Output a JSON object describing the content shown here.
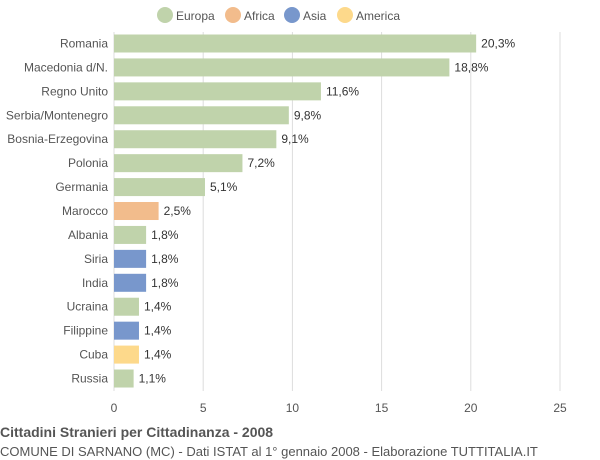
{
  "chart_data": {
    "type": "bar",
    "orientation": "horizontal",
    "title": "Cittadini Stranieri per Cittadinanza - 2008",
    "subtitle": "COMUNE DI SARNANO (MC) - Dati ISTAT al 1° gennaio 2008 - Elaborazione TUTTITALIA.IT",
    "legend_position": "top",
    "legend": [
      {
        "name": "Europa",
        "color": "#c0d3ab"
      },
      {
        "name": "Africa",
        "color": "#f2bc8c"
      },
      {
        "name": "Asia",
        "color": "#7897cc"
      },
      {
        "name": "America",
        "color": "#fdd98b"
      }
    ],
    "categories": [
      "Romania",
      "Macedonia d/N.",
      "Regno Unito",
      "Serbia/Montenegro",
      "Bosnia-Erzegovina",
      "Polonia",
      "Germania",
      "Marocco",
      "Albania",
      "Siria",
      "India",
      "Ucraina",
      "Filippine",
      "Cuba",
      "Russia"
    ],
    "values": [
      20.3,
      18.8,
      11.6,
      9.8,
      9.1,
      7.2,
      5.1,
      2.5,
      1.8,
      1.8,
      1.8,
      1.4,
      1.4,
      1.4,
      1.1
    ],
    "value_labels": [
      "20,3%",
      "18,8%",
      "11,6%",
      "9,8%",
      "9,1%",
      "7,2%",
      "5,1%",
      "2,5%",
      "1,8%",
      "1,8%",
      "1,8%",
      "1,4%",
      "1,4%",
      "1,4%",
      "1,1%"
    ],
    "groups": [
      "Europa",
      "Europa",
      "Europa",
      "Europa",
      "Europa",
      "Europa",
      "Europa",
      "Africa",
      "Europa",
      "Asia",
      "Asia",
      "Europa",
      "Asia",
      "America",
      "Europa"
    ],
    "xlim": [
      0,
      25
    ],
    "xticks": [
      0,
      5,
      10,
      15,
      20,
      25
    ],
    "xtick_labels": [
      "0",
      "5",
      "10",
      "15",
      "20",
      "25"
    ],
    "grid": true
  }
}
